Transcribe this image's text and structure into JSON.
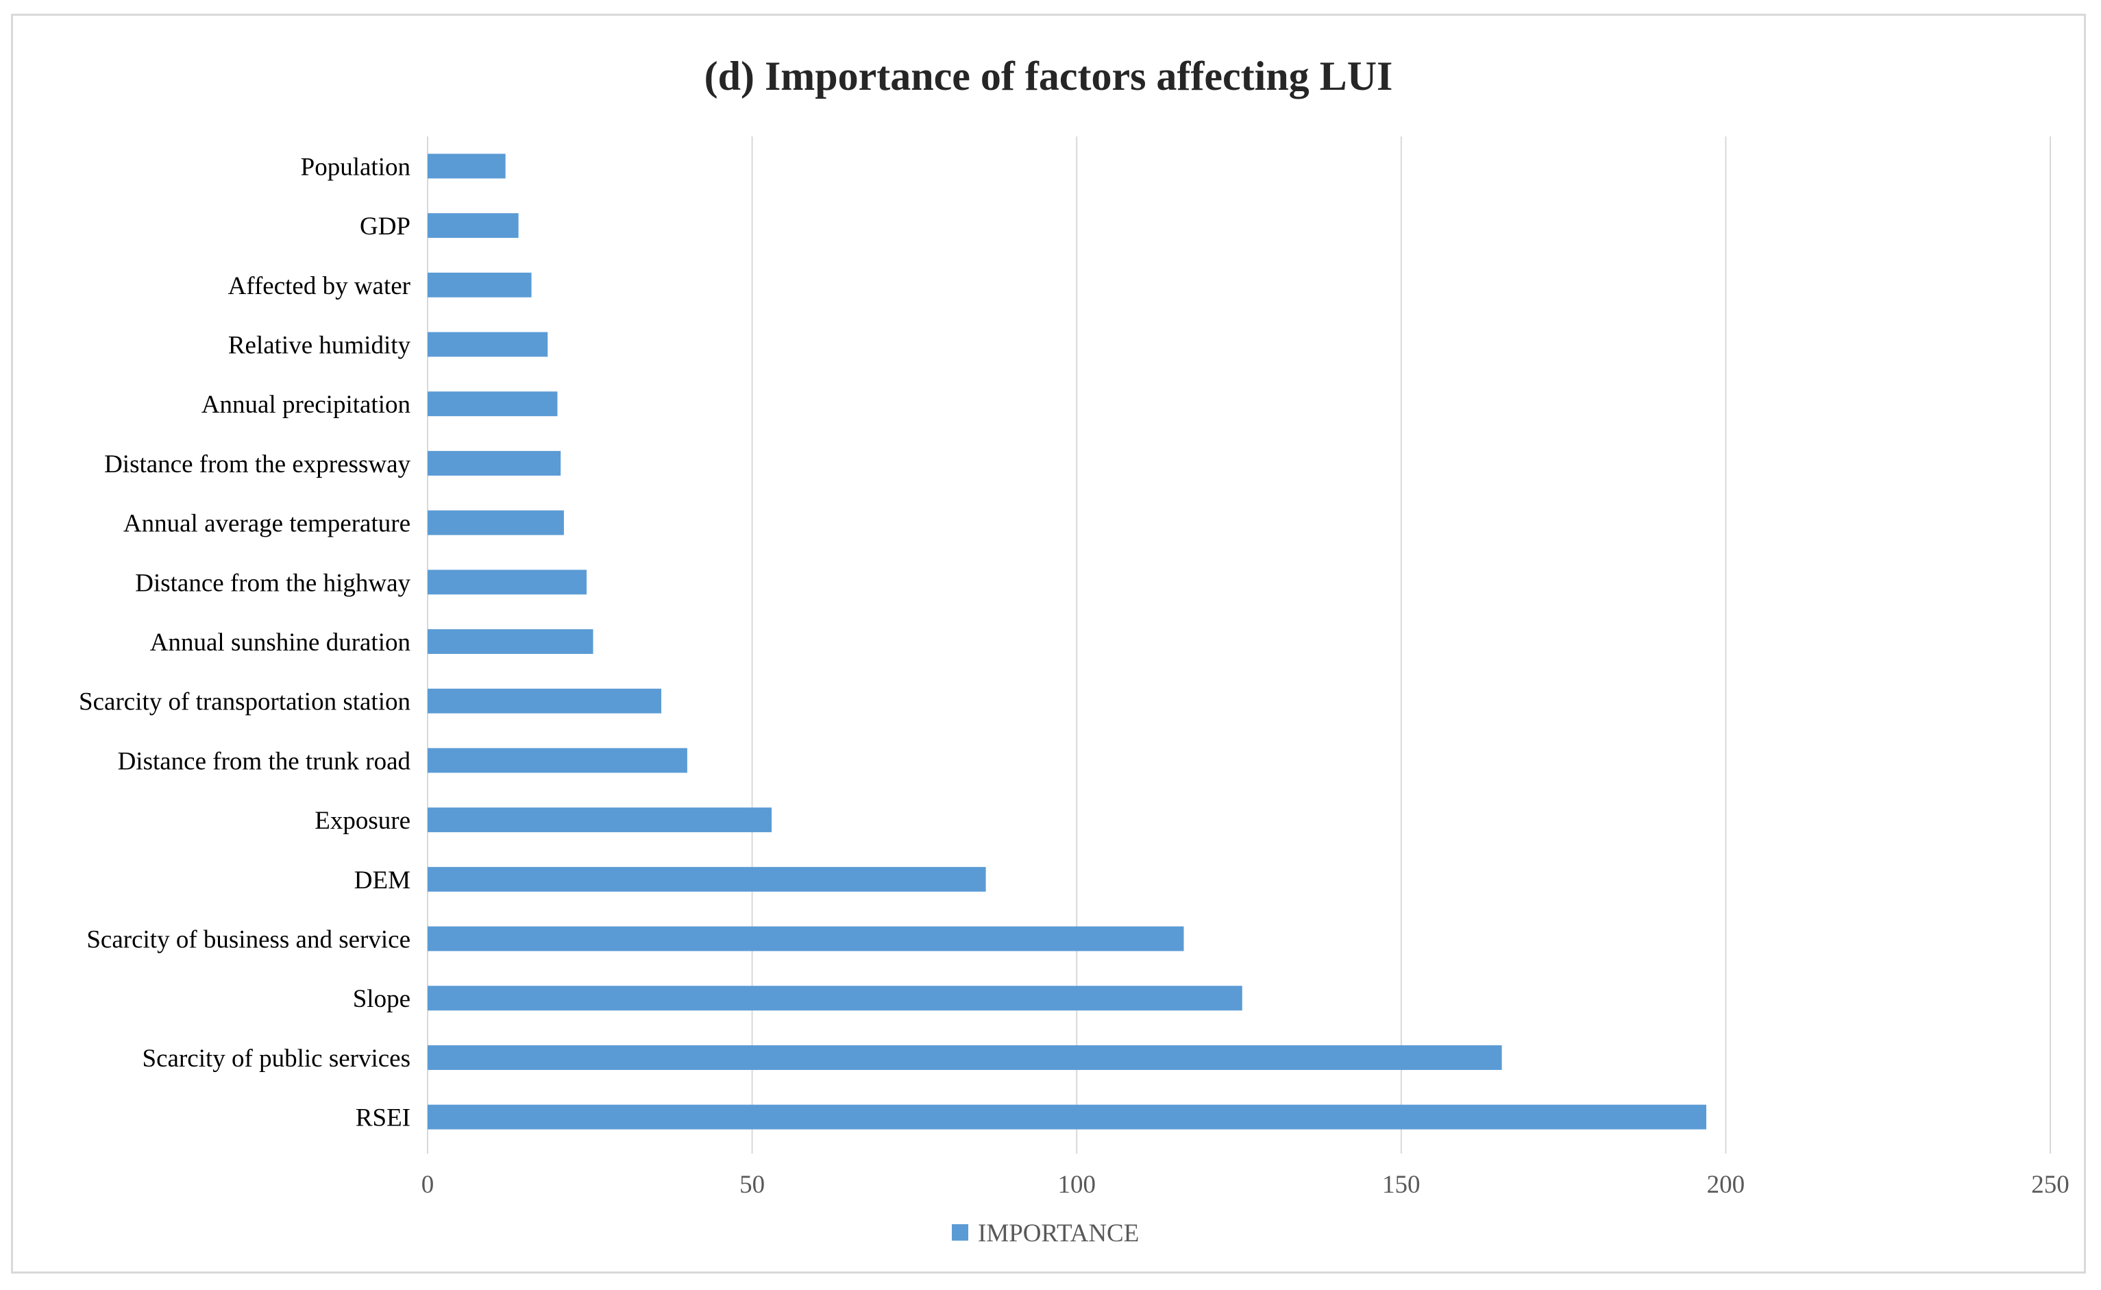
{
  "chart_data": {
    "type": "bar",
    "orientation": "horizontal",
    "title": "(d) Importance of factors affecting LUI",
    "xlabel": "",
    "ylabel": "",
    "xlim": [
      0,
      250
    ],
    "x_ticks": [
      "0",
      "50",
      "100",
      "150",
      "200",
      "250"
    ],
    "grid": "vertical",
    "legend_position": "bottom",
    "categories": [
      "Population",
      "GDP",
      "Affected by water",
      "Relative humidity",
      "Annual precipitation",
      "Distance from the expressway",
      "Annual average temperature",
      "Distance from the highway",
      "Annual sunshine duration",
      "Scarcity of transportation station",
      "Distance from the trunk road",
      "Exposure",
      "DEM",
      "Scarcity of business and service",
      "Slope",
      "Scarcity of public services",
      "RSEI"
    ],
    "series": [
      {
        "name": "IMPORTANCE",
        "color": "#5b9bd5",
        "values": [
          12,
          14,
          16,
          18.5,
          20,
          20.5,
          21,
          24.5,
          25.5,
          36,
          40,
          53,
          86,
          116.5,
          125.5,
          165.5,
          197
        ]
      }
    ]
  }
}
